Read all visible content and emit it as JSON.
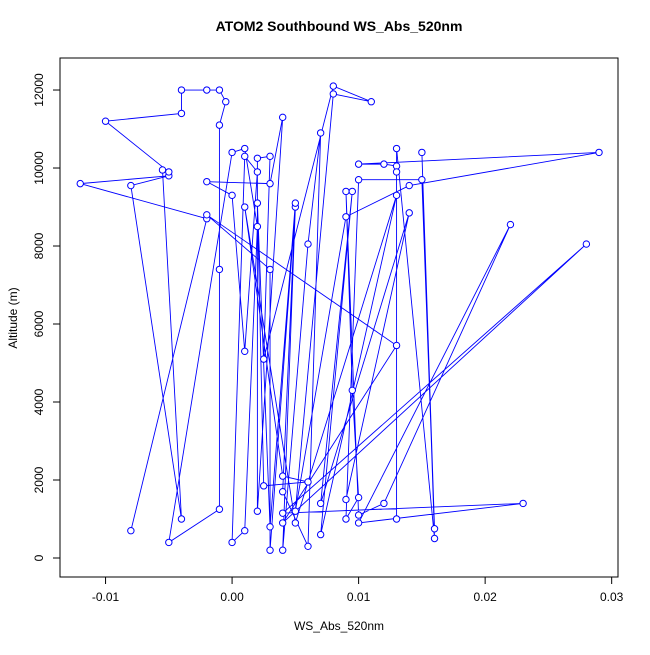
{
  "chart_data": {
    "type": "line-points",
    "title": "ATOM2 Southbound WS_Abs_520nm",
    "x_label": "WS_Abs_520nm",
    "y_label": "Altitude (m)",
    "color": "#0000ff",
    "xlim": [
      -0.0136,
      0.0305
    ],
    "ylim": [
      -487,
      12821
    ],
    "xticks": [
      -0.01,
      {
        "value": 0,
        "label": "0.00"
      },
      0.01,
      0.02,
      0.03
    ],
    "yticks": [
      0,
      2000,
      4000,
      6000,
      8000,
      10000,
      12000
    ],
    "series": [
      {
        "x": [
          -0.008,
          -0.002,
          -0.012,
          -0.005,
          -0.008,
          -0.004,
          -0.0055,
          -0.005,
          -0.01,
          -0.004,
          -0.004,
          -0.002,
          -0.001,
          -0.0005,
          -0.001,
          -0.001,
          -0.001,
          -0.005,
          0.0,
          0.001,
          0.002,
          0.001,
          0.0,
          0.001,
          0.002,
          0.001,
          0.0,
          -0.002,
          0.003,
          0.004,
          0.002,
          0.002,
          0.003,
          0.0025,
          0.008,
          0.011,
          0.008,
          0.005,
          0.009,
          0.014,
          0.029,
          0.01,
          0.012,
          0.013,
          0.013,
          0.013,
          0.013,
          0.016,
          0.015,
          0.016,
          0.015,
          0.01,
          0.009,
          0.01,
          0.0095,
          0.009,
          0.01,
          0.012,
          0.022,
          0.01,
          0.023,
          0.004,
          0.028,
          0.004,
          0.013,
          -0.002,
          0.003,
          0.003,
          0.005,
          0.004,
          0.006,
          0.007,
          0.006,
          0.004,
          0.005,
          0.003,
          0.002,
          0.0025,
          0.006,
          0.004,
          0.001,
          0.005,
          0.013,
          0.007,
          0.0095,
          0.007,
          0.014,
          0.009
        ],
        "values": [
          700,
          8700,
          9600,
          9800,
          9550,
          1000,
          9950,
          9900,
          11200,
          11400,
          12000,
          12000,
          12000,
          11700,
          11100,
          7400,
          1250,
          400,
          10400,
          10500,
          8500,
          700,
          400,
          10300,
          9900,
          5300,
          9300,
          9650,
          9600,
          11300,
          1200,
          10250,
          10300,
          5100,
          12100,
          11700,
          11900,
          1200,
          8750,
          9550,
          10400,
          10100,
          10100,
          10050,
          9900,
          1000,
          10500,
          500,
          10400,
          750,
          9700,
          9700,
          1000,
          1550,
          4300,
          9400,
          1100,
          1400,
          8550,
          900,
          1400,
          1150,
          8050,
          900,
          5450,
          8800,
          7400,
          200,
          9000,
          200,
          8050,
          10900,
          300,
          1700,
          9100,
          800,
          9100,
          1850,
          1950,
          2100,
          9000,
          900,
          9300,
          600,
          9400,
          1400,
          8850,
          1500
        ]
      }
    ]
  }
}
